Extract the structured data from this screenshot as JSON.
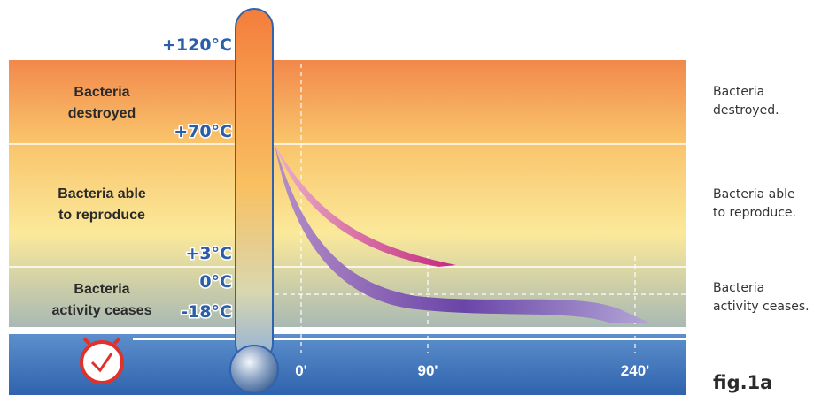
{
  "temperatures": [
    "+120°C",
    "+70°C",
    "+3°C",
    "0°C",
    "-18°C"
  ],
  "zones": [
    {
      "left_label": [
        "Bacteria",
        "destroyed"
      ],
      "right_label": [
        "Bacteria",
        "destroyed."
      ]
    },
    {
      "left_label": [
        "Bacteria able",
        "to reproduce"
      ],
      "right_label": [
        "Bacteria able",
        "to reproduce."
      ]
    },
    {
      "left_label": [
        "Bacteria",
        "activity ceases"
      ],
      "right_label": [
        "Bacteria",
        "activity ceases."
      ]
    }
  ],
  "time_labels": [
    "0'",
    "90'",
    "240'"
  ],
  "figure_label": "fig.1a"
}
